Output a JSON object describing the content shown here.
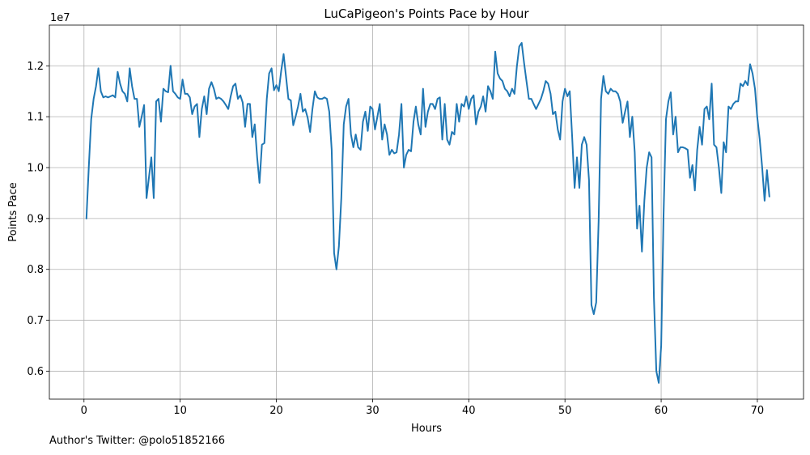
{
  "footer": {
    "text": "Author's Twitter: @polo51852166"
  },
  "chart_data": {
    "type": "line",
    "title": "LuCaPigeon's Points Pace by Hour",
    "xlabel": "Hours",
    "ylabel": "Points Pace",
    "y_offset_text": "1e7",
    "grid": true,
    "xlim": [
      -3.6,
      74.8
    ],
    "ylim": [
      5450000,
      12800000
    ],
    "x_ticks": [
      0,
      10,
      20,
      30,
      40,
      50,
      60,
      70
    ],
    "y_ticks": [
      6000000,
      7000000,
      8000000,
      9000000,
      10000000,
      11000000,
      12000000
    ],
    "y_tick_labels": [
      "0.6",
      "0.7",
      "0.8",
      "0.9",
      "1.0",
      "1.1",
      "1.2"
    ],
    "line_color": "#1f77b4",
    "series": [
      {
        "x": [
          0.25,
          0.5,
          0.75,
          1.0,
          1.25,
          1.5,
          1.75,
          2.0,
          2.25,
          2.5,
          2.75,
          3.0,
          3.25,
          3.5,
          3.75,
          4.0,
          4.25,
          4.5,
          4.75,
          5.0,
          5.25,
          5.5,
          5.75,
          6.0,
          6.25,
          6.5,
          6.75,
          7.0,
          7.25,
          7.5,
          7.75,
          8.0,
          8.25,
          8.5,
          8.75,
          9.0,
          9.25,
          9.5,
          9.75,
          10.0,
          10.25,
          10.5,
          10.75,
          11.0,
          11.25,
          11.5,
          11.75,
          12.0,
          12.25,
          12.5,
          12.75,
          13.0,
          13.25,
          13.5,
          13.75,
          14.0,
          14.25,
          14.5,
          14.75,
          15.0,
          15.25,
          15.5,
          15.75,
          16.0,
          16.25,
          16.5,
          16.75,
          17.0,
          17.25,
          17.5,
          17.75,
          18.0,
          18.25,
          18.5,
          18.75,
          19.0,
          19.25,
          19.5,
          19.75,
          20.0,
          20.25,
          20.5,
          20.75,
          21.0,
          21.25,
          21.5,
          21.75,
          22.0,
          22.25,
          22.5,
          22.75,
          23.0,
          23.25,
          23.5,
          23.75,
          24.0,
          24.25,
          24.5,
          24.75,
          25.0,
          25.25,
          25.5,
          25.75,
          26.0,
          26.25,
          26.5,
          26.75,
          27.0,
          27.25,
          27.5,
          27.75,
          28.0,
          28.25,
          28.5,
          28.75,
          29.0,
          29.25,
          29.5,
          29.75,
          30.0,
          30.25,
          30.5,
          30.75,
          31.0,
          31.25,
          31.5,
          31.75,
          32.0,
          32.25,
          32.5,
          32.75,
          33.0,
          33.25,
          33.5,
          33.75,
          34.0,
          34.25,
          34.5,
          34.75,
          35.0,
          35.25,
          35.5,
          35.75,
          36.0,
          36.25,
          36.5,
          36.75,
          37.0,
          37.25,
          37.5,
          37.75,
          38.0,
          38.25,
          38.5,
          38.75,
          39.0,
          39.25,
          39.5,
          39.75,
          40.0,
          40.25,
          40.5,
          40.75,
          41.0,
          41.25,
          41.5,
          41.75,
          42.0,
          42.25,
          42.5,
          42.75,
          43.0,
          43.25,
          43.5,
          43.75,
          44.0,
          44.25,
          44.5,
          44.75,
          45.0,
          45.25,
          45.5,
          45.75,
          46.0,
          46.25,
          46.5,
          46.75,
          47.0,
          47.25,
          47.5,
          47.75,
          48.0,
          48.25,
          48.5,
          48.75,
          49.0,
          49.25,
          49.5,
          49.75,
          50.0,
          50.25,
          50.5,
          50.75,
          51.0,
          51.25,
          51.5,
          51.75,
          52.0,
          52.25,
          52.5,
          52.75,
          53.0,
          53.25,
          53.5,
          53.75,
          54.0,
          54.25,
          54.5,
          54.75,
          55.0,
          55.25,
          55.5,
          55.75,
          56.0,
          56.25,
          56.5,
          56.75,
          57.0,
          57.25,
          57.5,
          57.75,
          58.0,
          58.25,
          58.5,
          58.75,
          59.0,
          59.25,
          59.5,
          59.75,
          60.0,
          60.25,
          60.5,
          60.75,
          61.0,
          61.25,
          61.5,
          61.75,
          62.0,
          62.25,
          62.5,
          62.75,
          63.0,
          63.25,
          63.5,
          63.75,
          64.0,
          64.25,
          64.5,
          64.75,
          65.0,
          65.25,
          65.5,
          65.75,
          66.0,
          66.25,
          66.5,
          66.75,
          67.0,
          67.25,
          67.5,
          67.75,
          68.0,
          68.25,
          68.5,
          68.75,
          69.0,
          69.25,
          69.5,
          69.75,
          70.0,
          70.25,
          70.5,
          70.75,
          71.0,
          71.25
        ],
        "y": [
          9000000,
          10000000,
          10950000,
          11350000,
          11600000,
          11950000,
          11500000,
          11380000,
          11400000,
          11380000,
          11400000,
          11420000,
          11380000,
          11880000,
          11650000,
          11500000,
          11450000,
          11300000,
          11950000,
          11600000,
          11350000,
          11350000,
          10800000,
          11000000,
          11230000,
          9400000,
          9800000,
          10200000,
          9400000,
          11300000,
          11350000,
          10900000,
          11550000,
          11500000,
          11480000,
          12000000,
          11500000,
          11450000,
          11380000,
          11350000,
          11730000,
          11450000,
          11450000,
          11380000,
          11050000,
          11200000,
          11250000,
          10600000,
          11150000,
          11400000,
          11050000,
          11550000,
          11680000,
          11550000,
          11350000,
          11380000,
          11350000,
          11300000,
          11230000,
          11150000,
          11400000,
          11600000,
          11650000,
          11350000,
          11420000,
          11280000,
          10800000,
          11250000,
          11250000,
          10600000,
          10850000,
          10200000,
          9700000,
          10450000,
          10480000,
          11350000,
          11850000,
          11950000,
          11520000,
          11620000,
          11500000,
          11900000,
          12230000,
          11800000,
          11350000,
          11320000,
          10830000,
          11000000,
          11200000,
          11450000,
          11100000,
          11150000,
          10980000,
          10700000,
          11150000,
          11500000,
          11380000,
          11350000,
          11350000,
          11380000,
          11350000,
          11100000,
          10350000,
          8320000,
          8000000,
          8450000,
          9400000,
          10850000,
          11200000,
          11350000,
          10650000,
          10400000,
          10650000,
          10400000,
          10350000,
          10900000,
          11100000,
          10720000,
          11200000,
          11150000,
          10750000,
          11000000,
          11250000,
          10550000,
          10850000,
          10650000,
          10250000,
          10350000,
          10280000,
          10300000,
          10650000,
          11250000,
          10000000,
          10250000,
          10350000,
          10320000,
          10900000,
          11200000,
          10850000,
          10650000,
          11550000,
          10800000,
          11100000,
          11250000,
          11250000,
          11150000,
          11350000,
          11380000,
          10550000,
          11250000,
          10550000,
          10450000,
          10700000,
          10650000,
          11250000,
          10900000,
          11250000,
          11200000,
          11400000,
          11150000,
          11350000,
          11420000,
          10850000,
          11100000,
          11200000,
          11400000,
          11100000,
          11600000,
          11500000,
          11350000,
          12280000,
          11850000,
          11750000,
          11700000,
          11550000,
          11500000,
          11400000,
          11550000,
          11450000,
          11980000,
          12380000,
          12450000,
          12050000,
          11700000,
          11350000,
          11350000,
          11250000,
          11150000,
          11250000,
          11350000,
          11500000,
          11700000,
          11650000,
          11450000,
          11050000,
          11100000,
          10750000,
          10550000,
          11300000,
          11550000,
          11400000,
          11500000,
          10600000,
          9600000,
          10200000,
          9600000,
          10450000,
          10600000,
          10450000,
          9750000,
          7300000,
          7120000,
          7350000,
          8950000,
          11350000,
          11800000,
          11500000,
          11450000,
          11550000,
          11500000,
          11500000,
          11450000,
          11300000,
          10880000,
          11100000,
          11300000,
          10600000,
          11000000,
          10300000,
          8800000,
          9250000,
          8350000,
          9350000,
          10000000,
          10300000,
          10200000,
          7450000,
          6000000,
          5770000,
          6500000,
          9050000,
          10950000,
          11300000,
          11480000,
          10650000,
          11000000,
          10300000,
          10400000,
          10400000,
          10380000,
          10350000,
          9800000,
          10050000,
          9550000,
          10350000,
          10800000,
          10450000,
          11150000,
          11200000,
          10950000,
          11650000,
          10450000,
          10400000,
          10000000,
          9500000,
          10500000,
          10300000,
          11200000,
          11150000,
          11250000,
          11300000,
          11300000,
          11650000,
          11600000,
          11700000,
          11620000,
          12030000,
          11850000,
          11550000,
          10980000,
          10550000,
          10000000,
          9350000,
          9950000,
          9430000
        ]
      }
    ]
  }
}
